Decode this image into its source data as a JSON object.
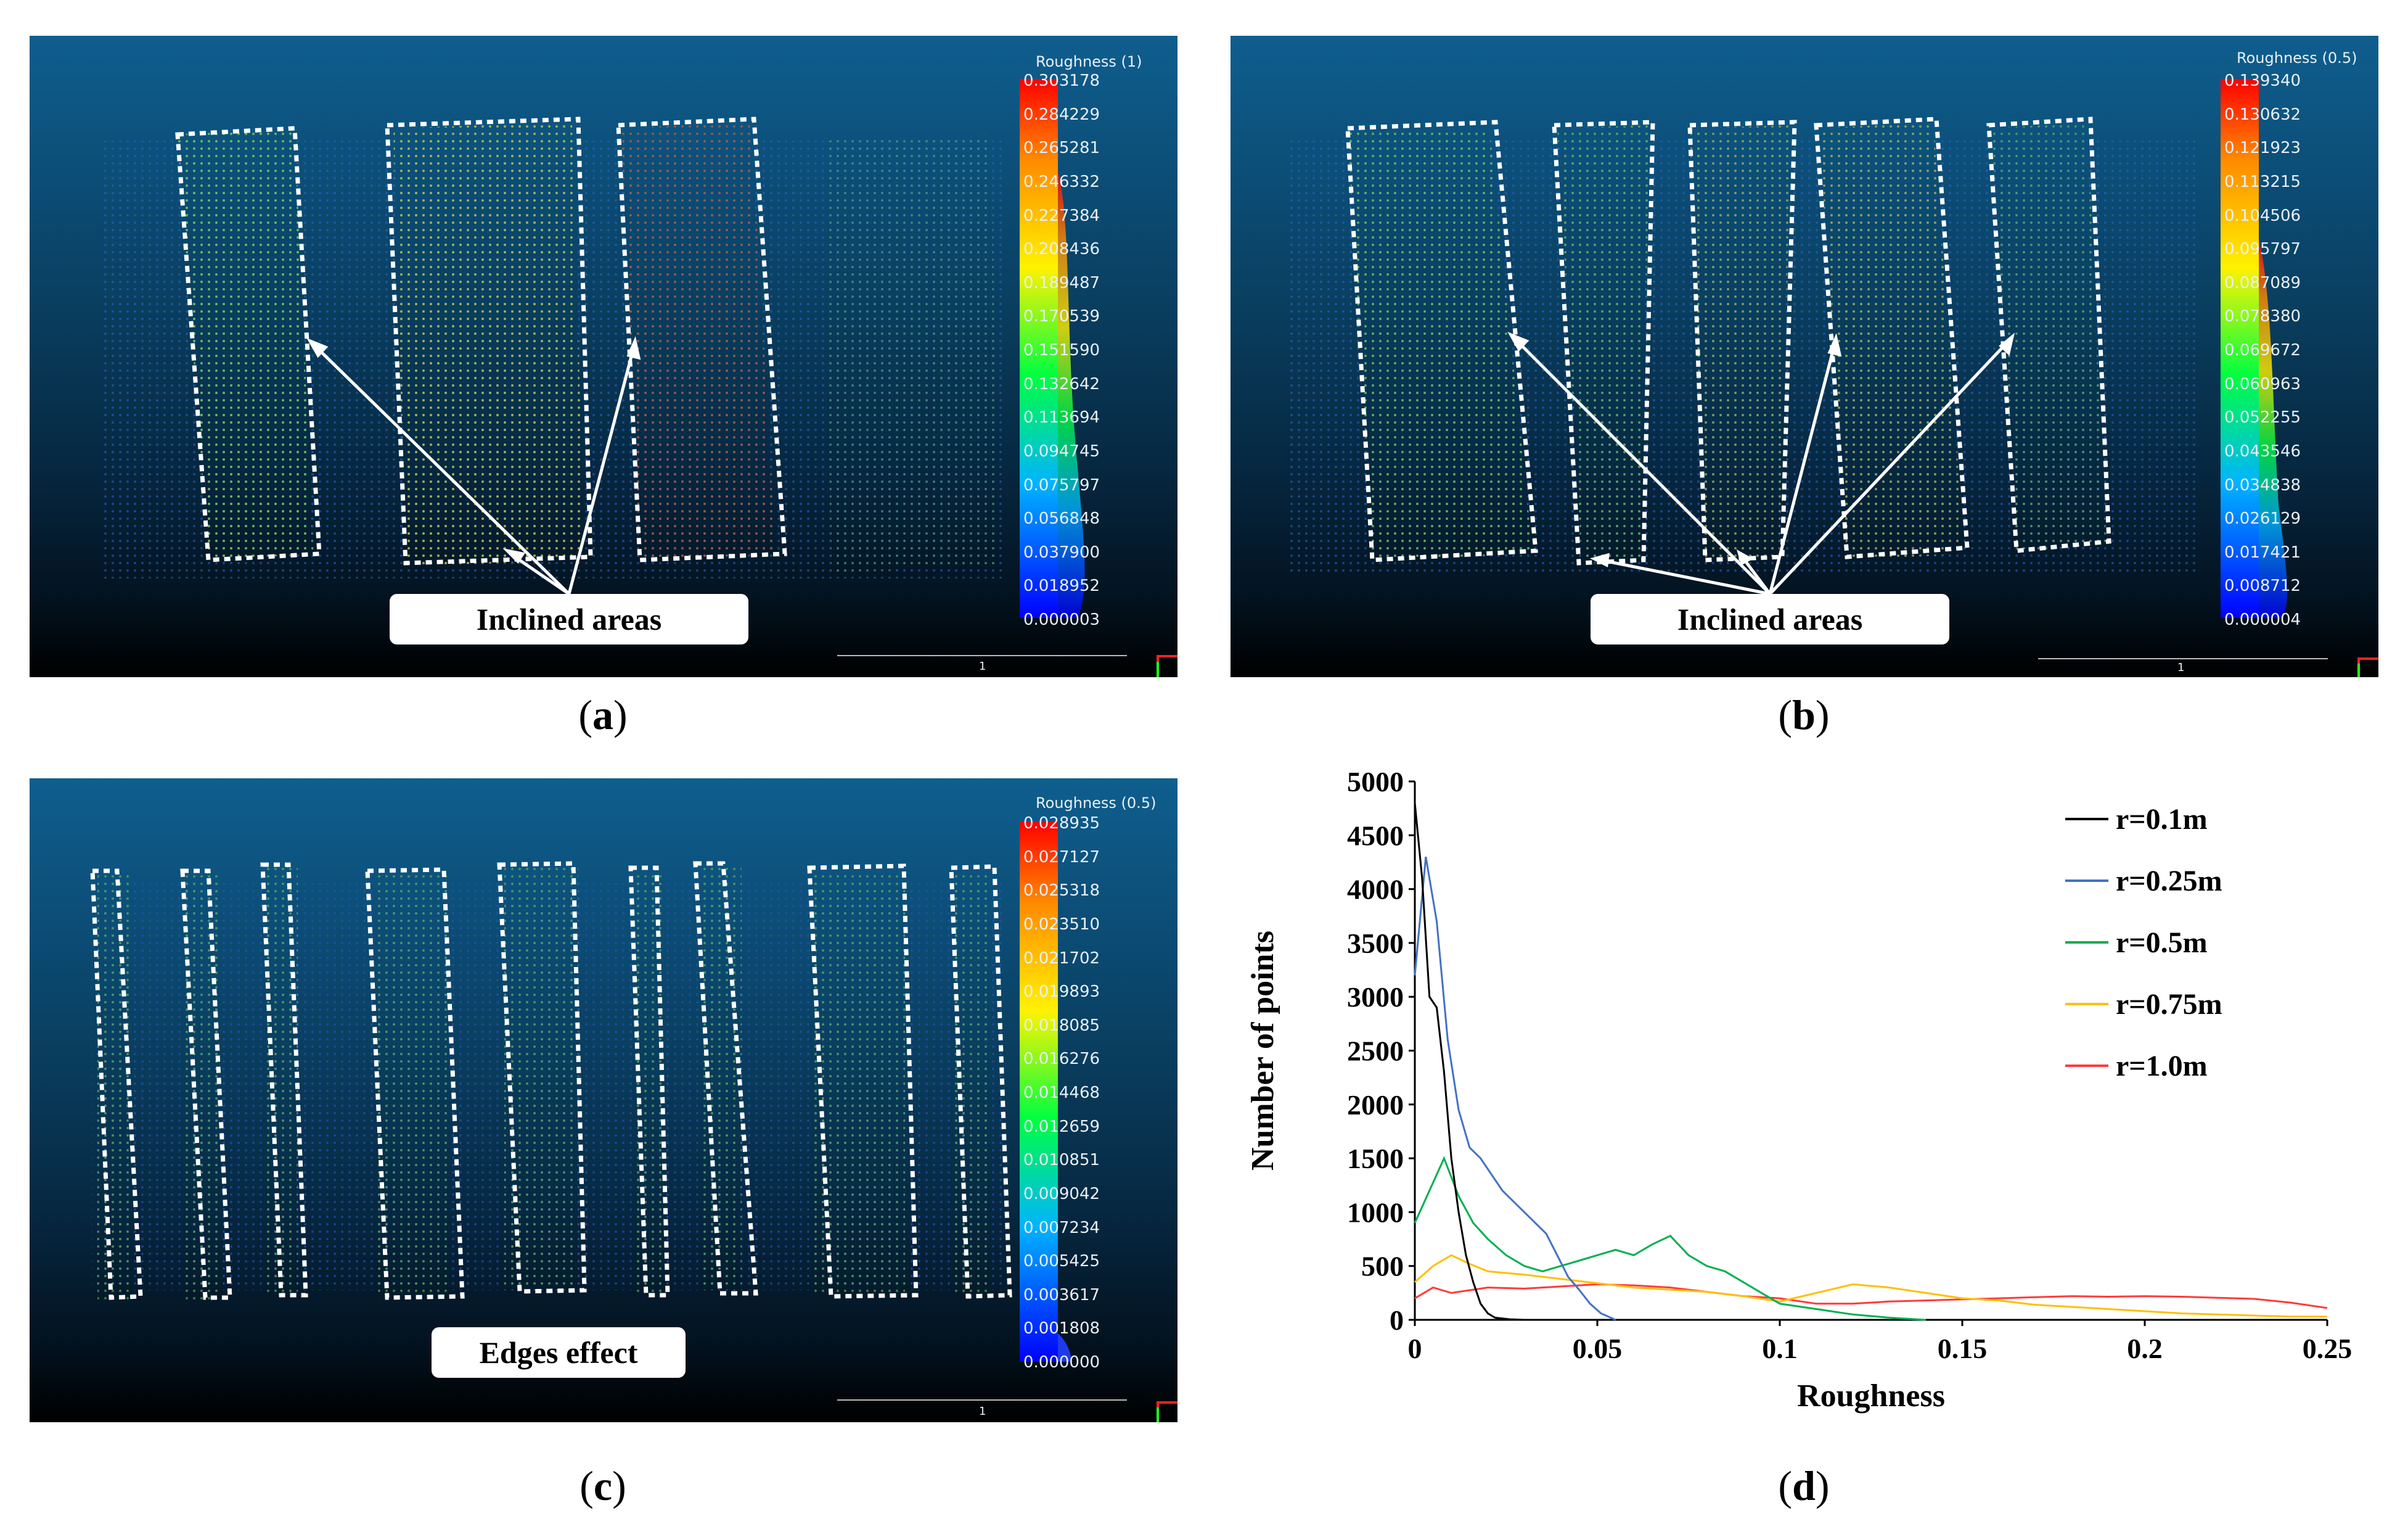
{
  "captions": {
    "a": "a",
    "b": "b",
    "c": "c",
    "d": "d"
  },
  "panel_a": {
    "scale_title": "Roughness (1)",
    "ticks": [
      "0.303178",
      "0.284229",
      "0.265281",
      "0.246332",
      "0.227384",
      "0.208436",
      "0.189487",
      "0.170539",
      "0.151590",
      "0.132642",
      "0.113694",
      "0.094745",
      "0.075797",
      "0.056848",
      "0.037900",
      "0.018952",
      "0.000003"
    ],
    "callout": "Inclined areas",
    "scale_bar_label": "1"
  },
  "panel_b": {
    "scale_title": "Roughness (0.5)",
    "ticks": [
      "0.139340",
      "0.130632",
      "0.121923",
      "0.113215",
      "0.104506",
      "0.095797",
      "0.087089",
      "0.078380",
      "0.069672",
      "0.060963",
      "0.052255",
      "0.043546",
      "0.034838",
      "0.026129",
      "0.017421",
      "0.008712",
      "0.000004"
    ],
    "callout": "Inclined areas",
    "scale_bar_label": "1"
  },
  "panel_c": {
    "scale_title": "Roughness (0.5)",
    "ticks": [
      "0.028935",
      "0.027127",
      "0.025318",
      "0.023510",
      "0.021702",
      "0.019893",
      "0.018085",
      "0.016276",
      "0.014468",
      "0.012659",
      "0.010851",
      "0.009042",
      "0.007234",
      "0.005425",
      "0.003617",
      "0.001808",
      "0.000000"
    ],
    "callout": "Edges effect",
    "scale_bar_label": "1"
  },
  "chart_data": {
    "type": "line",
    "title": "",
    "xlabel": "Roughness",
    "ylabel": "Number of points",
    "xlim": [
      0,
      0.25
    ],
    "ylim": [
      0,
      5000
    ],
    "x_ticks": [
      "0",
      "0.05",
      "0.1",
      "0.15",
      "0.2",
      "0.25"
    ],
    "y_ticks": [
      "0",
      "500",
      "1000",
      "1500",
      "2000",
      "2500",
      "3000",
      "3500",
      "4000",
      "4500",
      "5000"
    ],
    "legend_position": "top-right",
    "series": [
      {
        "name": "r=0.1m",
        "color": "#000000",
        "points": [
          [
            0,
            4800
          ],
          [
            0.002,
            4100
          ],
          [
            0.004,
            3000
          ],
          [
            0.006,
            2900
          ],
          [
            0.008,
            2300
          ],
          [
            0.01,
            1500
          ],
          [
            0.012,
            1000
          ],
          [
            0.014,
            600
          ],
          [
            0.016,
            350
          ],
          [
            0.018,
            150
          ],
          [
            0.02,
            60
          ],
          [
            0.022,
            20
          ],
          [
            0.026,
            5
          ],
          [
            0.03,
            0
          ]
        ]
      },
      {
        "name": "r=0.25m",
        "color": "#4472c4",
        "points": [
          [
            0,
            3200
          ],
          [
            0.003,
            4300
          ],
          [
            0.006,
            3700
          ],
          [
            0.009,
            2600
          ],
          [
            0.012,
            1950
          ],
          [
            0.015,
            1600
          ],
          [
            0.018,
            1500
          ],
          [
            0.021,
            1350
          ],
          [
            0.024,
            1200
          ],
          [
            0.027,
            1100
          ],
          [
            0.03,
            1000
          ],
          [
            0.033,
            900
          ],
          [
            0.036,
            800
          ],
          [
            0.039,
            600
          ],
          [
            0.042,
            400
          ],
          [
            0.045,
            280
          ],
          [
            0.048,
            150
          ],
          [
            0.051,
            60
          ],
          [
            0.055,
            0
          ]
        ]
      },
      {
        "name": "r=0.5m",
        "color": "#00b050",
        "points": [
          [
            0,
            900
          ],
          [
            0.004,
            1200
          ],
          [
            0.008,
            1500
          ],
          [
            0.012,
            1150
          ],
          [
            0.016,
            900
          ],
          [
            0.02,
            750
          ],
          [
            0.025,
            600
          ],
          [
            0.03,
            500
          ],
          [
            0.035,
            450
          ],
          [
            0.04,
            500
          ],
          [
            0.045,
            550
          ],
          [
            0.05,
            600
          ],
          [
            0.055,
            650
          ],
          [
            0.06,
            600
          ],
          [
            0.065,
            700
          ],
          [
            0.07,
            780
          ],
          [
            0.075,
            600
          ],
          [
            0.08,
            500
          ],
          [
            0.085,
            450
          ],
          [
            0.09,
            350
          ],
          [
            0.095,
            250
          ],
          [
            0.1,
            150
          ],
          [
            0.11,
            100
          ],
          [
            0.12,
            50
          ],
          [
            0.13,
            20
          ],
          [
            0.14,
            0
          ]
        ]
      },
      {
        "name": "r=0.75m",
        "color": "#ffc000",
        "points": [
          [
            0,
            350
          ],
          [
            0.005,
            500
          ],
          [
            0.01,
            600
          ],
          [
            0.015,
            520
          ],
          [
            0.02,
            450
          ],
          [
            0.03,
            420
          ],
          [
            0.04,
            380
          ],
          [
            0.05,
            340
          ],
          [
            0.06,
            300
          ],
          [
            0.07,
            280
          ],
          [
            0.08,
            260
          ],
          [
            0.09,
            220
          ],
          [
            0.1,
            170
          ],
          [
            0.11,
            250
          ],
          [
            0.12,
            330
          ],
          [
            0.13,
            300
          ],
          [
            0.14,
            250
          ],
          [
            0.15,
            200
          ],
          [
            0.16,
            180
          ],
          [
            0.17,
            140
          ],
          [
            0.18,
            120
          ],
          [
            0.19,
            100
          ],
          [
            0.2,
            80
          ],
          [
            0.21,
            60
          ],
          [
            0.22,
            50
          ],
          [
            0.23,
            40
          ],
          [
            0.24,
            30
          ],
          [
            0.25,
            30
          ]
        ]
      },
      {
        "name": "r=1.0m",
        "color": "#ff3b3b",
        "points": [
          [
            0,
            200
          ],
          [
            0.005,
            300
          ],
          [
            0.01,
            250
          ],
          [
            0.02,
            300
          ],
          [
            0.03,
            290
          ],
          [
            0.04,
            310
          ],
          [
            0.05,
            330
          ],
          [
            0.06,
            320
          ],
          [
            0.07,
            300
          ],
          [
            0.08,
            260
          ],
          [
            0.09,
            220
          ],
          [
            0.1,
            200
          ],
          [
            0.11,
            150
          ],
          [
            0.12,
            150
          ],
          [
            0.13,
            170
          ],
          [
            0.14,
            180
          ],
          [
            0.15,
            190
          ],
          [
            0.16,
            200
          ],
          [
            0.17,
            210
          ],
          [
            0.18,
            220
          ],
          [
            0.19,
            215
          ],
          [
            0.2,
            220
          ],
          [
            0.21,
            215
          ],
          [
            0.22,
            205
          ],
          [
            0.23,
            195
          ],
          [
            0.24,
            160
          ],
          [
            0.25,
            110
          ]
        ]
      }
    ]
  }
}
